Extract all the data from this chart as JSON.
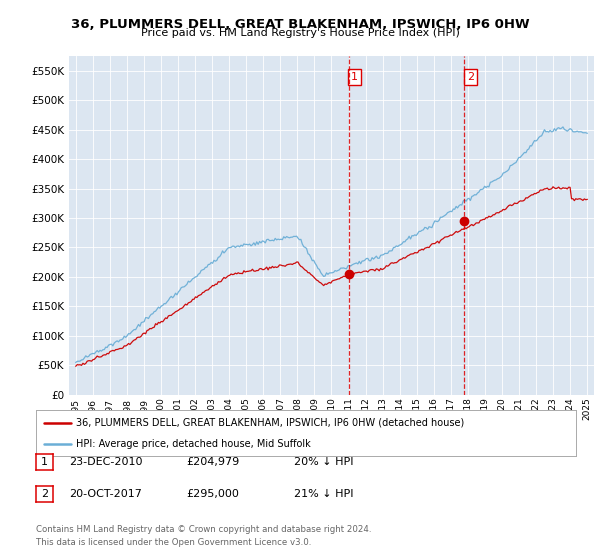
{
  "title": "36, PLUMMERS DELL, GREAT BLAKENHAM, IPSWICH, IP6 0HW",
  "subtitle": "Price paid vs. HM Land Registry's House Price Index (HPI)",
  "legend_line1": "36, PLUMMERS DELL, GREAT BLAKENHAM, IPSWICH, IP6 0HW (detached house)",
  "legend_line2": "HPI: Average price, detached house, Mid Suffolk",
  "transaction1_date": "23-DEC-2010",
  "transaction1_price": "£204,979",
  "transaction1_hpi": "20% ↓ HPI",
  "transaction2_date": "20-OCT-2017",
  "transaction2_price": "£295,000",
  "transaction2_hpi": "21% ↓ HPI",
  "footer": "Contains HM Land Registry data © Crown copyright and database right 2024.\nThis data is licensed under the Open Government Licence v3.0.",
  "hpi_color": "#6baed6",
  "price_color": "#cc0000",
  "vline_color": "#dd0000",
  "background_color": "#ffffff",
  "plot_bg_color": "#dce6f1",
  "ylim": [
    0,
    575000
  ],
  "yticks": [
    0,
    50000,
    100000,
    150000,
    200000,
    250000,
    300000,
    350000,
    400000,
    450000,
    500000,
    550000
  ],
  "xmin": 1994.6,
  "xmax": 2025.4,
  "vline1_x": 2011.0,
  "vline2_x": 2017.8,
  "marker1_x": 2011.0,
  "marker1_y": 204979,
  "marker2_x": 2017.8,
  "marker2_y": 295000
}
